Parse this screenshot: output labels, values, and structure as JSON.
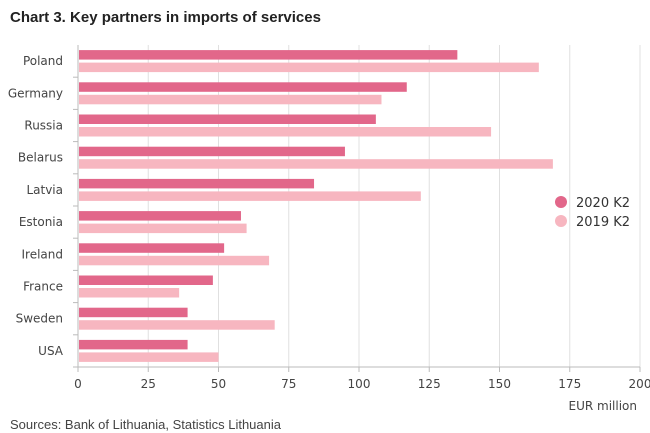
{
  "chart_data": {
    "type": "bar",
    "orientation": "horizontal",
    "title": "Chart 3. Key partners in imports of services",
    "xlabel": "EUR million",
    "ylabel": "",
    "xlim": [
      0,
      200
    ],
    "x_ticks": [
      0,
      25,
      50,
      75,
      100,
      125,
      150,
      175,
      200
    ],
    "grid": true,
    "legend_position": "right",
    "categories": [
      "Poland",
      "Germany",
      "Russia",
      "Belarus",
      "Latvia",
      "Estonia",
      "Ireland",
      "France",
      "Sweden",
      "USA"
    ],
    "series": [
      {
        "name": "2020 K2",
        "color": "#e2678a",
        "values": [
          135,
          117,
          106,
          95,
          84,
          58,
          52,
          48,
          39,
          39
        ]
      },
      {
        "name": "2019 K2",
        "color": "#f7b6c0",
        "values": [
          164,
          108,
          147,
          169,
          122,
          60,
          68,
          36,
          70,
          50
        ]
      }
    ]
  },
  "source": "Sources: Bank of Lithuania, Statistics Lithuania"
}
